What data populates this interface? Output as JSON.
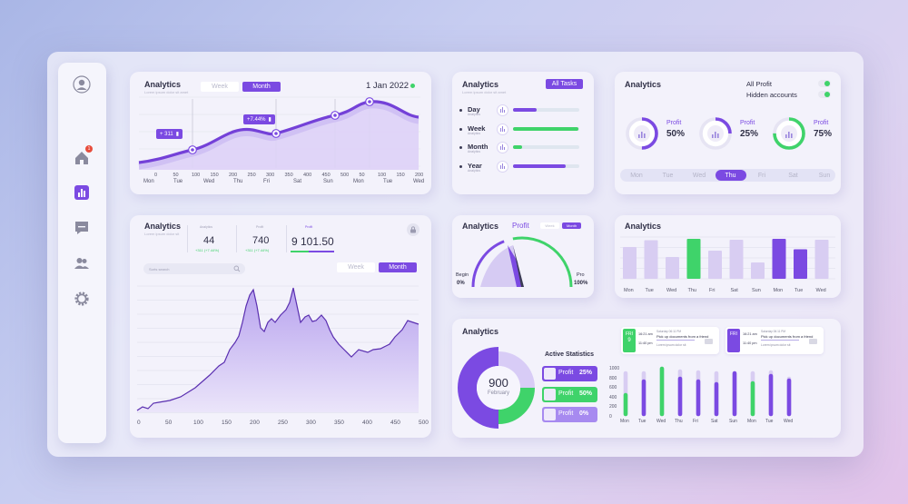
{
  "colors": {
    "accent": "#7b4ae2",
    "green": "#3fd36a",
    "light": "#d8cdf2"
  },
  "sidebar": {
    "items": [
      {
        "icon": "user-icon"
      },
      {
        "icon": "home-icon",
        "badge": "1"
      },
      {
        "icon": "bar-chart-icon"
      },
      {
        "icon": "message-icon"
      },
      {
        "icon": "users-icon"
      },
      {
        "icon": "gear-icon"
      }
    ]
  },
  "card1": {
    "title": "Analytics",
    "subtitle": "Lorem ipsum dolor sit amet",
    "tabs": [
      "Week",
      "Month"
    ],
    "date": "1 Jan 2022",
    "badges": [
      "+ 311",
      "+7.44%"
    ],
    "x_ticks": [
      "0",
      "50",
      "100",
      "150",
      "200",
      "250",
      "300",
      "350",
      "400",
      "450",
      "500",
      "50",
      "100",
      "150",
      "200"
    ],
    "days": [
      "Mon",
      "Tue",
      "Wed",
      "Thu",
      "Fri",
      "Sat",
      "Sun",
      "Mon",
      "Tue",
      "Wed"
    ]
  },
  "card2": {
    "title": "Analytics",
    "subtitle": "Lorem ipsum dolor sit amet",
    "button": "All Tasks",
    "rows": [
      {
        "label": "Day",
        "sub": "Analytics",
        "progress": 0.35,
        "color": "#7b4ae2"
      },
      {
        "label": "Week",
        "sub": "Analytics",
        "progress": 0.98,
        "color": "#3fd36a"
      },
      {
        "label": "Month",
        "sub": "Analytics",
        "progress": 0.14,
        "color": "#3fd36a"
      },
      {
        "label": "Year",
        "sub": "Analytics",
        "progress": 0.8,
        "color": "#7b4ae2"
      }
    ]
  },
  "card3": {
    "title": "Analytics",
    "toggles": [
      {
        "label": "All Profit",
        "on": true
      },
      {
        "label": "Hidden accounts",
        "on": true
      }
    ],
    "rings": [
      {
        "label": "Profit",
        "value": "50%",
        "percent": 50,
        "color": "#7b4ae2"
      },
      {
        "label": "Profit",
        "value": "25%",
        "percent": 25,
        "color": "#7b4ae2"
      },
      {
        "label": "Profit",
        "value": "75%",
        "percent": 75,
        "color": "#3fd36a"
      }
    ],
    "days": [
      "Mon",
      "Tue",
      "Wed",
      "Thu",
      "Fri",
      "Sat",
      "Sun"
    ],
    "active_day": "Thu"
  },
  "card4": {
    "title": "Analytics",
    "subtitle": "Lorem ipsum dolor sit",
    "stats": [
      {
        "caption": "Analytics",
        "value": "44",
        "delta": "+311 (+7.44%)"
      },
      {
        "caption": "Profit",
        "value": "740",
        "delta": "+311 (+7.44%)"
      },
      {
        "caption": "Profit",
        "value": "9 101.50",
        "delta": ""
      }
    ],
    "search_placeholder": "Sorts search",
    "tabs": [
      "Week",
      "Month"
    ],
    "x_ticks": [
      "0",
      "50",
      "100",
      "150",
      "200",
      "250",
      "300",
      "350",
      "400",
      "450",
      "500"
    ]
  },
  "card5": {
    "title": "Analytics",
    "label": "Profit",
    "tabs": [
      "Week",
      "Month"
    ],
    "begin_label": "Begin",
    "begin_value": "0%",
    "pro_label": "Pro",
    "pro_value": "100%",
    "progress": 0.4
  },
  "card6": {
    "title": "Analytics",
    "days": [
      "Mon",
      "Tue",
      "Wed",
      "Thu",
      "Fri",
      "Sat",
      "Sun",
      "Mon",
      "Tue",
      "Wed"
    ],
    "bars": [
      {
        "value": 0.7,
        "color": "#d8cdf2"
      },
      {
        "value": 0.85,
        "color": "#d8cdf2"
      },
      {
        "value": 0.48,
        "color": "#d8cdf2"
      },
      {
        "value": 0.88,
        "color": "#3fd36a"
      },
      {
        "value": 0.62,
        "color": "#d8cdf2"
      },
      {
        "value": 0.86,
        "color": "#d8cdf2"
      },
      {
        "value": 0.36,
        "color": "#d8cdf2"
      },
      {
        "value": 0.88,
        "color": "#7b4ae2"
      },
      {
        "value": 0.65,
        "color": "#7b4ae2"
      },
      {
        "value": 0.86,
        "color": "#d8cdf2"
      }
    ]
  },
  "card7": {
    "title": "Analytics",
    "donut_value": "900",
    "donut_label": "February",
    "active_title": "Active Statistics",
    "legend": [
      {
        "label": "Profit",
        "value": "25%",
        "color": "#7b4ae2"
      },
      {
        "label": "Profit",
        "value": "50%",
        "color": "#3fd36a"
      },
      {
        "label": "Profit",
        "value": "0%",
        "color": "#a78af0"
      }
    ],
    "events": [
      {
        "day": "FRI",
        "date": "9",
        "time1": "16:21 am",
        "time2": "11:40 pm",
        "header": "Saturday 06:11 PM",
        "text": "Pick up documents from a friend",
        "sub": "Lorem ipsum dolor sit",
        "color": "#3fd36a"
      },
      {
        "day": "FRI",
        "date": "",
        "time1": "16:21 am",
        "time2": "11:40 pm",
        "header": "Saturday 06:11 PM",
        "text": "Pick up documents from a friend",
        "sub": "Lorem ipsum dolor sit",
        "color": "#7b4ae2"
      }
    ],
    "y_ticks": [
      "1000",
      "800",
      "600",
      "400",
      "200",
      "0"
    ],
    "days": [
      "Mon",
      "Tue",
      "Wed",
      "Thu",
      "Fri",
      "Sat",
      "Sun",
      "Mon",
      "Tue",
      "Wed"
    ]
  }
}
